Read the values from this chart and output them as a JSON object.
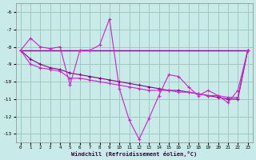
{
  "background_color": "#c8eae8",
  "grid_color": "#a0c8c0",
  "line_dark": "#880088",
  "line_bright": "#cc22cc",
  "xlim": [
    -0.5,
    23.5
  ],
  "ylim": [
    -13.5,
    -5.5
  ],
  "yticks": [
    -13,
    -12,
    -11,
    -10,
    -9,
    -8,
    -7,
    -6
  ],
  "xticks": [
    0,
    1,
    2,
    3,
    4,
    5,
    6,
    7,
    8,
    9,
    10,
    11,
    12,
    13,
    14,
    15,
    16,
    17,
    18,
    19,
    20,
    21,
    22,
    23
  ],
  "xlabel": "Windchill (Refroidissement éolien,°C)",
  "curve_flat_x": [
    0,
    1,
    2,
    3,
    4,
    5,
    6,
    7,
    8,
    9,
    10,
    11,
    12,
    13,
    14,
    15,
    16,
    17,
    18,
    19,
    20,
    21,
    22,
    23
  ],
  "curve_flat_y": [
    -8.2,
    -8.2,
    -8.2,
    -8.2,
    -8.2,
    -8.2,
    -8.2,
    -8.2,
    -8.2,
    -8.2,
    -8.2,
    -8.2,
    -8.2,
    -8.2,
    -8.2,
    -8.2,
    -8.2,
    -8.2,
    -8.2,
    -8.2,
    -8.2,
    -8.2,
    -8.2,
    -8.2
  ],
  "curve_diag1_x": [
    0,
    1,
    2,
    3,
    4,
    5,
    6,
    7,
    8,
    9,
    10,
    11,
    12,
    13,
    14,
    15,
    16,
    17,
    18,
    19,
    20,
    21,
    22,
    23
  ],
  "curve_diag1_y": [
    -8.2,
    -8.7,
    -9.0,
    -9.2,
    -9.3,
    -9.5,
    -9.6,
    -9.7,
    -9.8,
    -9.9,
    -10.0,
    -10.1,
    -10.2,
    -10.3,
    -10.4,
    -10.5,
    -10.5,
    -10.6,
    -10.7,
    -10.8,
    -10.9,
    -11.0,
    -11.0,
    -8.2
  ],
  "curve_diag2_x": [
    0,
    1,
    2,
    3,
    4,
    5,
    6,
    7,
    8,
    9,
    10,
    11,
    12,
    13,
    14,
    15,
    16,
    17,
    18,
    19,
    20,
    21,
    22,
    23
  ],
  "curve_diag2_y": [
    -8.2,
    -9.0,
    -9.2,
    -9.3,
    -9.4,
    -9.8,
    -9.8,
    -9.9,
    -10.0,
    -10.1,
    -10.2,
    -10.3,
    -10.4,
    -10.5,
    -10.5,
    -10.5,
    -10.6,
    -10.6,
    -10.7,
    -10.8,
    -10.8,
    -10.9,
    -10.9,
    -8.2
  ],
  "curve_zigzag_x": [
    0,
    1,
    2,
    3,
    4,
    5,
    6,
    7,
    8,
    9,
    10,
    11,
    12,
    13,
    14,
    15,
    16,
    17,
    18,
    19,
    20,
    21,
    22,
    23
  ],
  "curve_zigzag_y": [
    -8.2,
    -7.5,
    -8.0,
    -8.1,
    -8.0,
    -10.2,
    -8.2,
    -8.2,
    -7.9,
    -6.4,
    -10.4,
    -12.2,
    -13.3,
    -12.1,
    -10.8,
    -9.6,
    -9.7,
    -10.3,
    -10.8,
    -10.5,
    -10.8,
    -11.2,
    -10.5,
    -8.2
  ]
}
